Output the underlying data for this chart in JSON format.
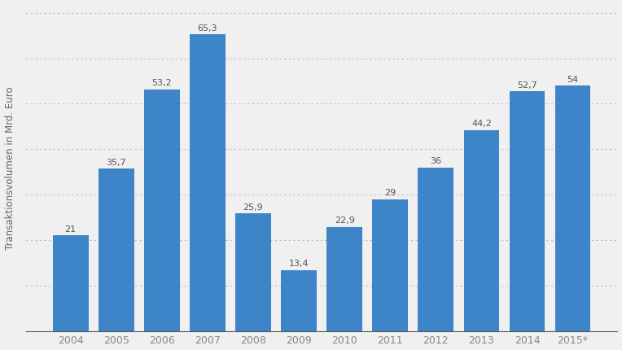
{
  "categories": [
    "2004",
    "2005",
    "2006",
    "2007",
    "2008",
    "2009",
    "2010",
    "2011",
    "2012",
    "2013",
    "2014",
    "2015*"
  ],
  "values": [
    21,
    35.7,
    53.2,
    65.3,
    25.9,
    13.4,
    22.9,
    29,
    36,
    44.2,
    52.7,
    54
  ],
  "bar_color": "#3d85c8",
  "ylabel": "Transaktionsvolumen in Mrd. Euro",
  "ylim": [
    0,
    72
  ],
  "yticks": [
    0,
    10,
    20,
    30,
    40,
    50,
    60,
    70
  ],
  "background_color": "#f0f0f0",
  "plot_background_color": "#f0f0f0",
  "grid_color": "#bbbbbb",
  "ylabel_fontsize": 8.5,
  "xlabel_fontsize": 9,
  "value_label_fontsize": 8,
  "bar_width": 0.78,
  "value_label_color": "#555555",
  "xtick_color": "#888888",
  "bottom_spine_color": "#555555"
}
